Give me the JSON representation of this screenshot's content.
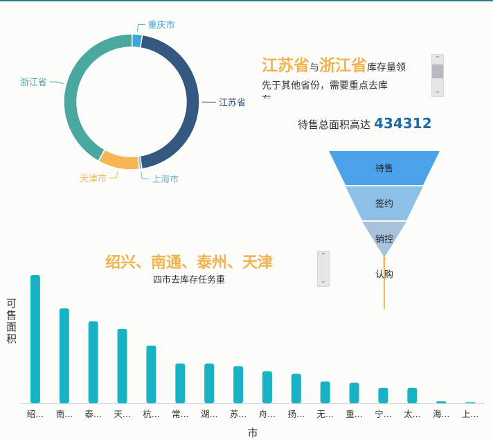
{
  "donut": {
    "slices": [
      {
        "name": "江苏省",
        "value": 45,
        "color": "#34587f"
      },
      {
        "name": "上海市",
        "value": 0.6,
        "color": "#6fb8d6"
      },
      {
        "name": "天津市",
        "value": 10,
        "color": "#f7b554"
      },
      {
        "name": "浙江省",
        "value": 42,
        "color": "#4ba8a0"
      },
      {
        "name": "重庆市",
        "value": 2.4,
        "color": "#3aa8d8"
      }
    ]
  },
  "text1": {
    "hl1": "江苏省",
    "mid": "与",
    "hl2": "浙江省",
    "rest": "库存量领",
    "line2": "先于其他省份，需要重点去库",
    "line3": "存"
  },
  "funnel": {
    "title_prefix": "待售总面积高达",
    "title_value": "434312",
    "stages": [
      {
        "label": "待售",
        "value": 100,
        "color": "#4aa3ea"
      },
      {
        "label": "签约",
        "value": 70,
        "color": "#8cc0e6"
      },
      {
        "label": "销控",
        "value": 40,
        "color": "#a7c2db"
      },
      {
        "label": "认购",
        "value": 2,
        "color": "#f7b554"
      }
    ]
  },
  "text2": {
    "headline": "绍兴、南通、泰州、天津",
    "sub": "四市去库存任务重"
  },
  "chart_data": {
    "type": "bar",
    "categories": [
      "绍...",
      "南...",
      "泰...",
      "天...",
      "杭...",
      "常...",
      "湖...",
      "苏...",
      "舟...",
      "扬...",
      "无...",
      "重...",
      "宁...",
      "太...",
      "海...",
      "上..."
    ],
    "values": [
      100,
      74,
      64,
      58,
      45,
      31,
      31,
      29,
      25,
      23,
      17,
      16,
      12,
      12,
      1.5,
      0.8
    ],
    "ylabel": "可售面积",
    "xlabel": "市",
    "ylim": [
      0,
      100
    ],
    "color": "#17b3c4"
  }
}
